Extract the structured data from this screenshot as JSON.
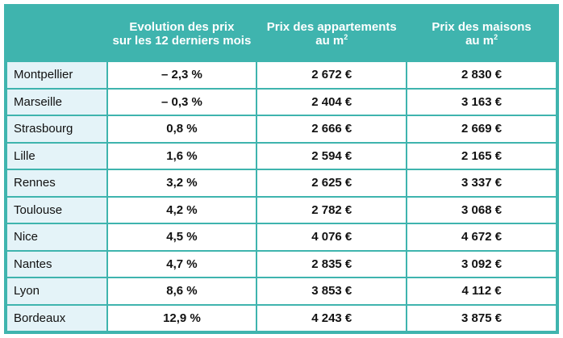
{
  "chart_data": {
    "type": "table",
    "columns": [
      "",
      "Evolution des prix sur les 12 derniers mois",
      "Prix des appartements au m2",
      "Prix des maisons au m2"
    ],
    "header": {
      "evolution_line1": "Evolution des prix",
      "evolution_line2": "sur les 12 derniers mois",
      "apartments_line1": "Prix des appartements",
      "apartments_line2": "au m",
      "houses_line1": "Prix des maisons",
      "houses_line2": "au m",
      "superscript": "2"
    },
    "rows": [
      {
        "city": "Montpellier",
        "evolution": "– 2,3 %",
        "apartment_price": "2 672 €",
        "house_price": "2 830 €"
      },
      {
        "city": "Marseille",
        "evolution": "– 0,3 %",
        "apartment_price": "2 404 €",
        "house_price": "3 163 €"
      },
      {
        "city": "Strasbourg",
        "evolution": "0,8 %",
        "apartment_price": "2 666 €",
        "house_price": "2 669 €"
      },
      {
        "city": "Lille",
        "evolution": "1,6 %",
        "apartment_price": "2 594 €",
        "house_price": "2 165 €"
      },
      {
        "city": "Rennes",
        "evolution": "3,2 %",
        "apartment_price": "2 625 €",
        "house_price": "3 337 €"
      },
      {
        "city": "Toulouse",
        "evolution": "4,2 %",
        "apartment_price": "2 782 €",
        "house_price": "3 068 €"
      },
      {
        "city": "Nice",
        "evolution": "4,5 %",
        "apartment_price": "4 076 €",
        "house_price": "4 672 €"
      },
      {
        "city": "Nantes",
        "evolution": "4,7 %",
        "apartment_price": "2 835 €",
        "house_price": "3 092 €"
      },
      {
        "city": "Lyon",
        "evolution": "8,6 %",
        "apartment_price": "3 853 €",
        "house_price": "4 112 €"
      },
      {
        "city": "Bordeaux",
        "evolution": "12,9 %",
        "apartment_price": "4 243 €",
        "house_price": "3 875 €"
      }
    ]
  },
  "colors": {
    "header_background": "#3fb4ae",
    "city_cell_background": "#e4f3f8",
    "value_cell_background": "#ffffff"
  }
}
